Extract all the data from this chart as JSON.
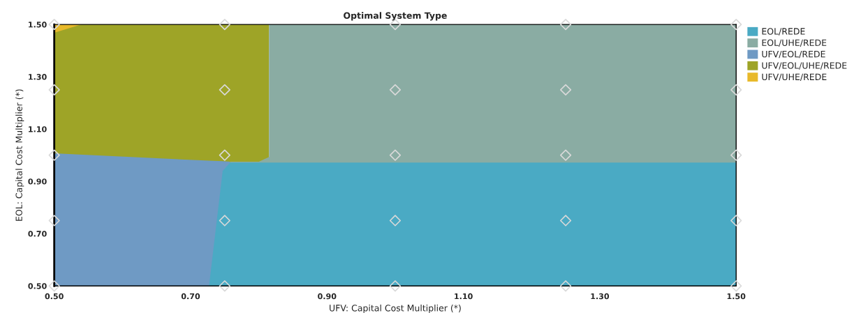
{
  "chart_data": {
    "type": "area",
    "title": "Optimal System Type",
    "xlabel": "UFV: Capital Cost Multiplier (*)",
    "ylabel": "EOL: Capital Cost Multiplier (*)",
    "xlim": [
      0.5,
      1.5
    ],
    "ylim": [
      0.5,
      1.5
    ],
    "xticks": [
      {
        "value": 0.5,
        "label": "0.50"
      },
      {
        "value": 0.7,
        "label": "0.70"
      },
      {
        "value": 0.9,
        "label": "0.90"
      },
      {
        "value": 1.1,
        "label": "1.10"
      },
      {
        "value": 1.3,
        "label": "1.30"
      },
      {
        "value": 1.5,
        "label": "1.50"
      }
    ],
    "yticks": [
      {
        "value": 0.5,
        "label": "0.50"
      },
      {
        "value": 0.7,
        "label": "0.70"
      },
      {
        "value": 0.9,
        "label": "0.90"
      },
      {
        "value": 1.1,
        "label": "1.10"
      },
      {
        "value": 1.3,
        "label": "1.30"
      },
      {
        "value": 1.5,
        "label": "1.50"
      }
    ],
    "grid": false,
    "legend": "top right",
    "series": [
      {
        "name": "EOL/REDE",
        "color": "#4aaac4",
        "x": [
          0.727,
          0.747,
          0.758,
          1.5
        ],
        "values": [
          0.5,
          0.94,
          0.972,
          0.972
        ]
      },
      {
        "name": "EOL/UHE/REDE",
        "color": "#8aaca3",
        "x": [
          0.758,
          0.8,
          0.815,
          0.815,
          1.5
        ],
        "values": [
          0.975,
          0.975,
          0.993,
          1.5,
          1.5
        ]
      },
      {
        "name": "UFV/EOL/REDE",
        "color": "#6f9ac4",
        "x": [
          0.5,
          0.727,
          0.747,
          0.758
        ],
        "values": [
          1.007,
          0.979,
          0.977,
          0.975
        ]
      },
      {
        "name": "UFV/EOL/UHE/REDE",
        "color": "#9ea427",
        "x": [
          0.5,
          0.54,
          0.6,
          0.7,
          0.758,
          0.8,
          0.815
        ],
        "values": [
          1.468,
          1.5,
          1.5,
          1.5,
          1.5,
          1.5,
          1.5
        ]
      },
      {
        "name": "UFV/UHE/REDE",
        "color": "#e8b92a",
        "x": [
          0.5,
          0.54
        ],
        "values": [
          1.5,
          1.5
        ]
      },
      {
        "type": "scatter",
        "color": "#d9d9d9",
        "marker": "diamond",
        "x": [
          0.5,
          0.75,
          1.0,
          1.25,
          1.5,
          0.5,
          0.75,
          1.0,
          1.25,
          1.5,
          0.5,
          0.75,
          1.0,
          1.25,
          1.5,
          0.5,
          0.75,
          1.0,
          1.25,
          1.5,
          0.5,
          0.75,
          1.0,
          1.25,
          1.5
        ],
        "values": [
          0.5,
          0.5,
          0.5,
          0.5,
          0.5,
          0.75,
          0.75,
          0.75,
          0.75,
          0.75,
          1.0,
          1.0,
          1.0,
          1.0,
          1.0,
          1.25,
          1.25,
          1.25,
          1.25,
          1.25,
          1.5,
          1.5,
          1.5,
          1.5,
          1.5
        ]
      }
    ]
  }
}
